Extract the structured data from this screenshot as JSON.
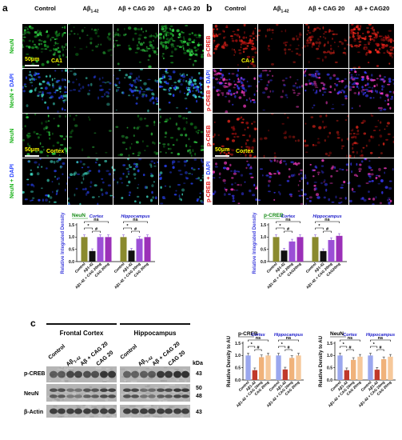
{
  "panel_a": {
    "letter": "a",
    "columns": [
      "Control",
      "Aβ",
      "Aβ + CAG 20",
      "Aβ + CAG 20"
    ],
    "col2_sub": "1-42",
    "rows": [
      "NeuN",
      "NeuN + DAPI",
      "NeuN",
      "NeuN + DAPI"
    ],
    "scale_label": "50μm",
    "region_ca1": "CA1",
    "region_cortex": "Cortex"
  },
  "panel_b": {
    "letter": "b",
    "columns": [
      "Control",
      "Aβ",
      "Aβ + CAG 20",
      "Aβ + CAG20"
    ],
    "col2_sub": "1-42",
    "rows": [
      "p-CREB",
      "p-CREB + DAPI",
      "p-CREB",
      "p-CREB + DAPI"
    ],
    "region_ca1": "CA-1",
    "region_cortex": "Cortex",
    "scale_label": "50μm"
  },
  "panel_c": {
    "letter": "c",
    "group_frontal": "Frontal Cortex",
    "group_hippo": "Hippocampus",
    "lanes": [
      "Control",
      "Aβ",
      "Aβ + CAG 20",
      "CAG 20"
    ],
    "lane_sub": "1-42",
    "rows": [
      "p-CREB",
      "NeuN",
      "β-Actin"
    ],
    "kda_header": "kDa",
    "kda": [
      "43",
      "50",
      "48",
      "43"
    ]
  },
  "chart_data": [
    {
      "type": "bar",
      "tag": "NeuN",
      "groups": [
        "Cortex",
        "Hippocampus"
      ],
      "categories": [
        "Control",
        "Aβ1-42",
        "Aβ1-42 + CAG 20mg",
        "CAG 20mg"
      ],
      "series": [
        {
          "values": [
            1.0,
            0.43,
            1.0,
            1.0
          ]
        },
        {
          "values": [
            1.0,
            0.45,
            0.93,
            1.0
          ]
        }
      ],
      "colors": [
        "#8a8a2e",
        "#111111",
        "#9b4fd6",
        "#9b30b8"
      ],
      "ylabel": "Relative Integrated Density",
      "ylim": [
        0,
        1.5
      ],
      "yticks": [
        "0.0",
        "0.5",
        "1.0",
        "1.5"
      ],
      "annotations": [
        "ns",
        "*",
        "#",
        "ns",
        "*",
        "#"
      ]
    },
    {
      "type": "bar",
      "tag": "p-CREB",
      "groups": [
        "Cortex",
        "Hippocampus"
      ],
      "categories": [
        "Control",
        "Aβ1-42",
        "Aβ1-42 + CAG 20mg",
        "CAG20mg"
      ],
      "series": [
        {
          "values": [
            1.0,
            0.45,
            0.82,
            1.0
          ]
        },
        {
          "values": [
            1.0,
            0.43,
            0.88,
            1.05
          ]
        }
      ],
      "colors": [
        "#8a8a2e",
        "#111111",
        "#9b4fd6",
        "#9b30b8"
      ],
      "ylabel": "Relative Integrated Density",
      "ylim": [
        0,
        1.5
      ],
      "yticks": [
        "0.0",
        "0.5",
        "1.0",
        "1.5"
      ],
      "annotations": [
        "ns",
        "*",
        "#",
        "ns",
        "*",
        "#"
      ]
    },
    {
      "type": "bar",
      "tag": "p-CREB",
      "groups": [
        "Cortex",
        "Hippocampus"
      ],
      "categories": [
        "Control",
        "Aβ1-42",
        "Aβ1-42 + CAG 20mg",
        "CAG 20mg"
      ],
      "series": [
        {
          "values": [
            1.0,
            0.4,
            0.93,
            1.0
          ]
        },
        {
          "values": [
            1.0,
            0.43,
            0.9,
            1.0
          ]
        }
      ],
      "colors": [
        "#9aa7ee",
        "#c0392b",
        "#f0b27a",
        "#f6c89a"
      ],
      "ylabel": "Relative Density to AU",
      "ylim": [
        0,
        1.5
      ],
      "yticks": [
        "0.0",
        "0.5",
        "1.0",
        "1.5"
      ],
      "annotations": [
        "ns",
        "*",
        "#",
        "ns",
        "*",
        "#"
      ]
    },
    {
      "type": "bar",
      "tag": "NeuN",
      "groups": [
        "Cortex",
        "Hippocampus"
      ],
      "categories": [
        "Control",
        "Aβ1-42",
        "Aβ1-42 + CAG 20mg",
        "CAG 20mg"
      ],
      "series": [
        {
          "values": [
            1.0,
            0.4,
            0.82,
            0.95
          ]
        },
        {
          "values": [
            1.0,
            0.42,
            0.85,
            0.95
          ]
        }
      ],
      "colors": [
        "#9aa7ee",
        "#c0392b",
        "#f0b27a",
        "#f6c89a"
      ],
      "ylabel": "Relative Density to AU",
      "ylim": [
        0,
        1.5
      ],
      "yticks": [
        "0.0",
        "0.5",
        "1.0",
        "1.5"
      ],
      "annotations": [
        "ns",
        "*",
        "#",
        "ns",
        "*",
        "#"
      ]
    }
  ]
}
